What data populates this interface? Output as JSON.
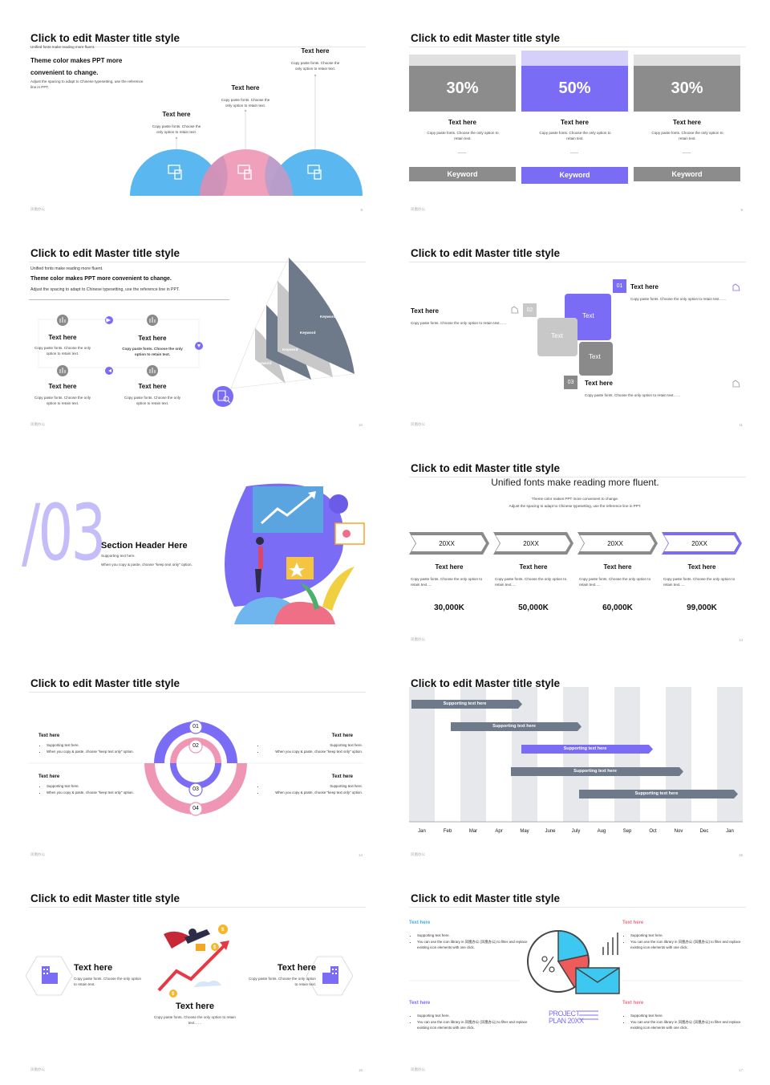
{
  "master_title": "Click to edit Master title style",
  "footer_brand": "凤凰办公",
  "colors": {
    "accent": "#7b6cf6",
    "blue": "#5bb7ef",
    "pink": "#ef96b4",
    "gray": "#8a8a8a",
    "slate": "#6e7a8a"
  },
  "s8": {
    "intro_small": "Unified fonts make reading more fluent.",
    "intro_bold": "Theme color makes PPT more convenient to change.",
    "intro_adjust": "Adjust the spacing to adapt to Chinese typesetting, use the reference line in PPT.",
    "items": [
      {
        "title": "Text here",
        "desc": "Copy paste fonts. Choose the only option to retain text."
      },
      {
        "title": "Text here",
        "desc": "Copy paste fonts. Choose the only option to retain text."
      },
      {
        "title": "Text here",
        "desc": "Copy paste fonts. Choose the only option to retain text."
      }
    ],
    "page": "8"
  },
  "s9": {
    "cols": [
      {
        "pct": "30%",
        "title": "Text here",
        "desc": "Copy paste fonts. Choose the only option to retain text.",
        "keyword": "Keyword"
      },
      {
        "pct": "50%",
        "title": "Text here",
        "desc": "Copy paste fonts. Choose the only option to retain text.",
        "keyword": "Keyword"
      },
      {
        "pct": "30%",
        "title": "Text here",
        "desc": "Copy paste fonts. Choose the only option to retain text.",
        "keyword": "Keyword"
      }
    ],
    "page": "9"
  },
  "s10": {
    "intro_small": "Unified fonts make reading more fluent.",
    "intro_bold": "Theme color makes PPT more convenient to change.",
    "intro_adjust": "Adjust the spacing to adapt to Chinese typesetting, use the reference line in PPT.",
    "items": [
      {
        "title": "Text here",
        "desc": "Copy paste fonts. Choose the only option to retain text."
      },
      {
        "title": "Text here",
        "desc": "Copy paste fonts. Choose the only option to retain text."
      },
      {
        "title": "Text here",
        "desc": "Copy paste fonts. Choose the only option to retain text."
      },
      {
        "title": "Text here",
        "desc": "Copy paste fonts. Choose the only option to retain text."
      }
    ],
    "keywords": [
      "Keyword",
      "Keyword",
      "Keyword",
      "Keyword"
    ],
    "page": "10"
  },
  "s11": {
    "left": {
      "title": "Text here",
      "desc": "Copy paste fonts. Choose the only option to retain text……"
    },
    "top": {
      "title": "Text here",
      "desc": "Copy paste fonts. Choose the only option to retain text……"
    },
    "bottom": {
      "title": "Text here",
      "desc": "Copy paste fonts. Choose the only option to retain text……"
    },
    "nums": [
      "01",
      "02",
      "03"
    ],
    "squares": [
      "Text",
      "Text",
      "Text"
    ],
    "page": "11"
  },
  "s12": {
    "big_number": "/03",
    "title": "Section Header Here",
    "sub1": "Supporting text here.",
    "sub2": "When you copy & paste, choose \"keep text only\" option."
  },
  "s13": {
    "headline": "Unified fonts make reading more fluent.",
    "sub1": "Theme color makes PPT more convenient to change.",
    "sub2": "Adjust the spacing to adapt to Chinese typesetting, use the reference line in PPT.",
    "cols": [
      {
        "year": "20XX",
        "title": "Text here",
        "desc": "Copy paste fonts. Choose the only option to retain text.....",
        "value": "30,000K"
      },
      {
        "year": "20XX",
        "title": "Text here",
        "desc": "Copy paste fonts. Choose the only option to retain text.....",
        "value": "50,000K"
      },
      {
        "year": "20XX",
        "title": "Text here",
        "desc": "Copy paste fonts. Choose the only option to retain text.....",
        "value": "60,000K"
      },
      {
        "year": "20XX",
        "title": "Text here",
        "desc": "Copy paste fonts. Choose the only option to retain text.....",
        "value": "99,000K"
      }
    ],
    "page": "13"
  },
  "s14": {
    "nums": [
      "01",
      "02",
      "03",
      "04"
    ],
    "items": [
      {
        "title": "Text here",
        "b1": "Supporting text here.",
        "b2": "When you copy & paste, choose \"keep text only\" option."
      },
      {
        "title": "Text here",
        "b1": "Supporting text here.",
        "b2": "When you copy & paste, choose \"keep text only\" option."
      },
      {
        "title": "Text here",
        "b1": "Supporting text here.",
        "b2": "When you copy & paste, choose \"keep text only\" option."
      },
      {
        "title": "Text here",
        "b1": "Supporting text here.",
        "b2": "When you copy & paste, choose \"keep text only\" option."
      }
    ],
    "page": "14"
  },
  "s15": {
    "months": [
      "Jan",
      "Feb",
      "Mar",
      "Apr",
      "May",
      "June",
      "July",
      "Aug",
      "Sep",
      "Oct",
      "Nov",
      "Dec",
      "Jan"
    ],
    "bars": [
      "Supporting text here",
      "Supporting text here",
      "Supporting text here",
      "Supporting text here",
      "Supporting text here"
    ],
    "page": "15"
  },
  "s16": {
    "left": {
      "title": "Text here",
      "desc": "Copy paste fonts. Choose the only option to retain text."
    },
    "right": {
      "title": "Text here",
      "desc": "Copy paste fonts. Choose the only option to retain text."
    },
    "bottom": {
      "title": "Text here",
      "desc": "Copy paste fonts. Choose the only option to retain text……"
    },
    "page": "16"
  },
  "s17": {
    "items": [
      {
        "title": "Text here",
        "b1": "Supporting text here.",
        "b2": "You can use the icon library in 凤凰办公 (凤凰办公) to filter and replace existing icon elements with one click."
      },
      {
        "title": "Text here",
        "b1": "Supporting text here.",
        "b2": "You can use the icon library in 凤凰办公 (凤凰办公) to filter and replace existing icon elements with one click."
      },
      {
        "title": "Text here",
        "b1": "Supporting text here.",
        "b2": "You can use the icon library in 凤凰办公 (凤凰办公) to filter and replace existing icon elements with one click."
      },
      {
        "title": "Text here",
        "b1": "Supporting text here.",
        "b2": "You can use the icon library in 凤凰办公 (凤凰办公) to filter and replace existing icon elements with one click."
      }
    ],
    "project": "PROJECT",
    "plan": "PLAN 20XX",
    "page": "17"
  }
}
